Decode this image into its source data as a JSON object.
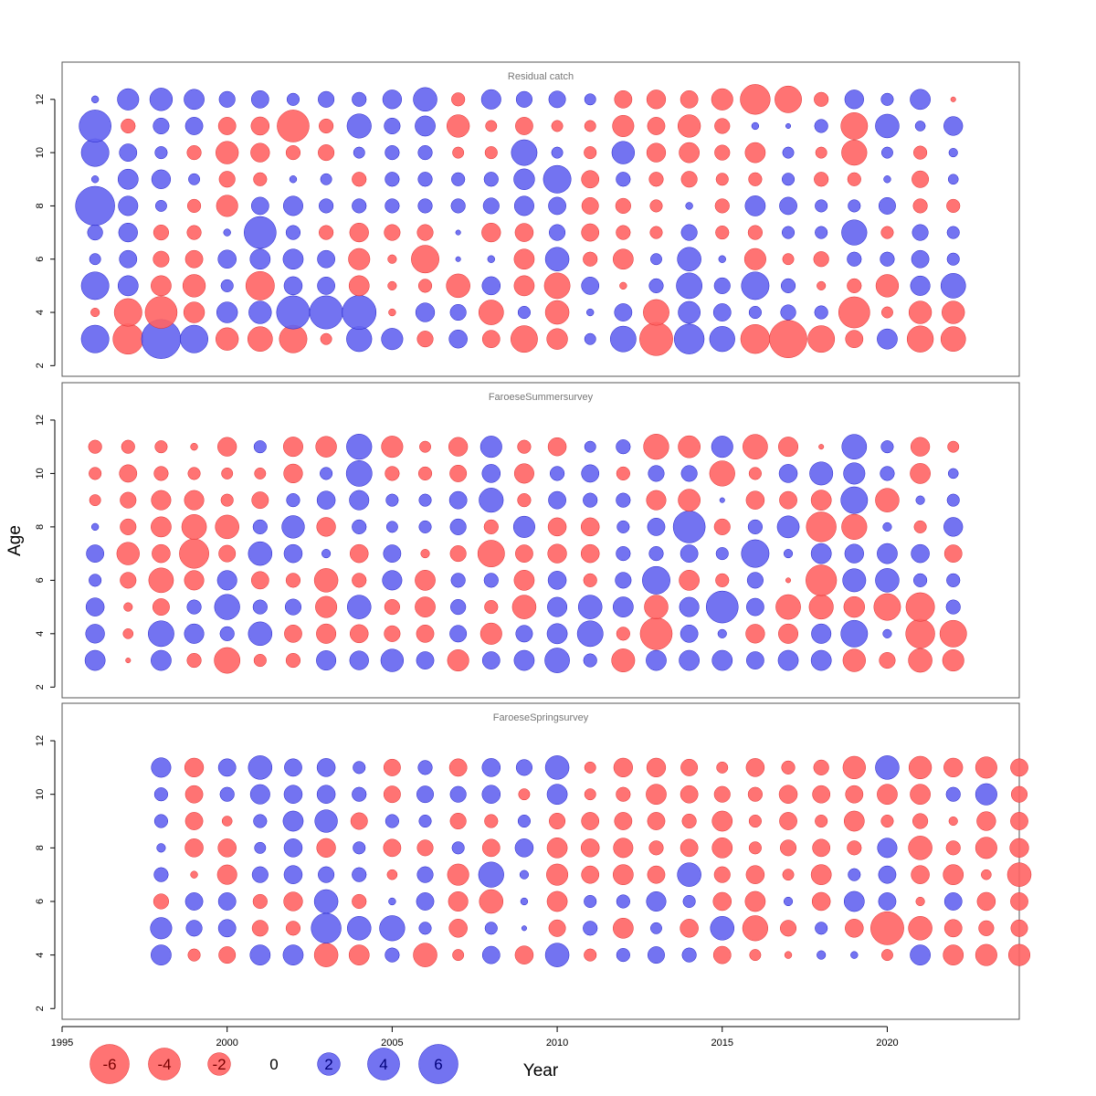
{
  "chart_data": {
    "type": "bubble",
    "xlabel": "Year",
    "ylabel": "Age",
    "years": [
      1996,
      1997,
      1998,
      1999,
      2000,
      2001,
      2002,
      2003,
      2004,
      2005,
      2006,
      2007,
      2008,
      2009,
      2010,
      2011,
      2012,
      2013,
      2014,
      2015,
      2016,
      2017,
      2018,
      2019,
      2020,
      2021,
      2022
    ],
    "xlim": [
      1995,
      2024
    ],
    "xticks": [
      "1995",
      "2000",
      "2005",
      "2010",
      "2015",
      "2020"
    ],
    "xtick_values": [
      1995,
      2000,
      2005,
      2010,
      2015,
      2020
    ],
    "ylim": [
      1.6,
      13.4
    ],
    "yticks": [
      "2",
      "4",
      "6",
      "8",
      "10",
      "12"
    ],
    "ytick_values": [
      2,
      4,
      6,
      8,
      10,
      12
    ],
    "max_residual": 6.3,
    "colors": {
      "negative": "#ff6464",
      "positive": "#6464f0",
      "negative_stroke": "#e03030",
      "positive_stroke": "#2020c8"
    },
    "panels": [
      {
        "title": "Residual catch",
        "ages": [
          3,
          4,
          5,
          6,
          7,
          8,
          9,
          10,
          11,
          12
        ],
        "start_year": 1996,
        "residuals": [
          [
            3.0,
            -0.3,
            3.0,
            0.5,
            0.9,
            6.0,
            0.2,
            3.0,
            4.0,
            0.2
          ],
          [
            -3.6,
            -3.0,
            1.6,
            1.2,
            1.4,
            1.5,
            1.6,
            1.2,
            -0.8,
            1.8
          ],
          [
            6.0,
            -4.0,
            -1.6,
            -1.0,
            -0.9,
            0.5,
            1.4,
            0.6,
            1.0,
            2.0
          ],
          [
            3.0,
            -1.7,
            -2.0,
            -1.2,
            -0.8,
            -0.7,
            0.5,
            -0.8,
            1.2,
            1.6
          ],
          [
            -2.0,
            1.7,
            0.6,
            1.3,
            0.2,
            -1.8,
            -1.0,
            -2.0,
            -1.2,
            1.0
          ],
          [
            -2.4,
            2.0,
            -3.2,
            1.6,
            4.0,
            1.2,
            -0.7,
            -1.4,
            -1.3,
            1.2
          ],
          [
            -3.0,
            4.3,
            1.3,
            1.6,
            0.8,
            1.5,
            0.2,
            -0.8,
            -4.0,
            0.6
          ],
          [
            -0.5,
            4.3,
            1.2,
            1.2,
            -0.8,
            0.8,
            0.5,
            -1.0,
            -0.8,
            1.0
          ],
          [
            2.5,
            4.5,
            -1.6,
            -1.8,
            -1.4,
            0.8,
            -0.8,
            0.5,
            2.3,
            0.8
          ],
          [
            1.8,
            -0.2,
            -0.3,
            -0.3,
            -1.0,
            0.8,
            0.8,
            0.8,
            1.0,
            1.4
          ],
          [
            -1.0,
            1.4,
            -0.7,
            -3.0,
            -1.0,
            0.8,
            0.8,
            0.8,
            1.6,
            2.2
          ],
          [
            1.3,
            1.0,
            -2.2,
            0.1,
            0.1,
            0.8,
            0.7,
            -0.5,
            -2.0,
            -0.7
          ],
          [
            -1.2,
            -2.4,
            1.3,
            0.2,
            -1.4,
            1.0,
            0.8,
            -0.6,
            -0.5,
            1.5
          ],
          [
            -2.8,
            0.6,
            -1.6,
            -1.6,
            -1.3,
            1.5,
            1.7,
            2.6,
            -1.2,
            1.0
          ],
          [
            -1.7,
            -2.2,
            -2.6,
            2.2,
            1.0,
            1.2,
            3.0,
            0.5,
            -0.5,
            1.1
          ],
          [
            0.5,
            0.2,
            1.2,
            -0.8,
            -1.2,
            -1.1,
            -1.2,
            -0.6,
            -0.5,
            0.5
          ],
          [
            2.6,
            1.2,
            -0.2,
            -1.6,
            -0.8,
            -0.9,
            0.8,
            2.0,
            -1.8,
            -1.2
          ],
          [
            -4.3,
            -2.6,
            0.8,
            0.5,
            -0.6,
            -0.6,
            -0.8,
            -1.4,
            -1.2,
            -1.4
          ],
          [
            3.5,
            1.9,
            2.6,
            2.2,
            1.0,
            0.2,
            -1.0,
            -1.6,
            -2.0,
            -1.2
          ],
          [
            2.5,
            1.2,
            1.0,
            0.2,
            -0.7,
            -0.8,
            -0.6,
            -0.9,
            -0.9,
            -1.8
          ],
          [
            -3.3,
            0.6,
            3.0,
            -1.8,
            -0.8,
            1.6,
            -0.7,
            -1.6,
            0.2,
            -3.5
          ],
          [
            -5.5,
            0.9,
            0.8,
            -0.5,
            0.6,
            1.2,
            0.6,
            0.5,
            0.1,
            -2.8
          ],
          [
            -2.8,
            0.7,
            -0.3,
            -0.9,
            0.6,
            0.6,
            -0.8,
            -0.5,
            0.7,
            -0.8
          ],
          [
            -1.2,
            -3.8,
            -0.8,
            0.8,
            2.5,
            0.6,
            -0.7,
            -2.5,
            -2.8,
            1.4
          ],
          [
            1.6,
            -0.5,
            -2.0,
            0.8,
            -0.6,
            1.1,
            0.2,
            0.5,
            2.2,
            0.6
          ],
          [
            -2.7,
            -2.0,
            1.5,
            1.2,
            1.0,
            -0.8,
            -1.1,
            -0.7,
            0.4,
            1.6
          ],
          [
            -2.4,
            -2.0,
            2.4,
            0.6,
            0.6,
            -0.7,
            0.4,
            0.3,
            1.4,
            -0.1
          ]
        ]
      },
      {
        "title": "FaroeseSummersurvey",
        "ages": [
          3,
          4,
          5,
          6,
          7,
          8,
          9,
          10,
          11
        ],
        "start_year": 1996,
        "residuals": [
          [
            1.6,
            1.4,
            1.3,
            0.6,
            1.2,
            0.2,
            -0.5,
            -0.6,
            -0.7
          ],
          [
            -0.1,
            -0.4,
            -0.3,
            -1.0,
            -2.0,
            -1.0,
            -1.0,
            -1.2,
            -0.7
          ],
          [
            1.6,
            2.6,
            -1.1,
            -2.4,
            -1.3,
            -1.6,
            -1.5,
            -0.8,
            -0.6
          ],
          [
            -0.8,
            1.5,
            0.8,
            -1.5,
            -3.4,
            -2.4,
            -1.5,
            -0.6,
            -0.2
          ],
          [
            -2.6,
            0.8,
            2.5,
            1.5,
            -1.1,
            -2.2,
            -0.6,
            -0.5,
            -1.4
          ],
          [
            -0.6,
            2.2,
            0.8,
            -1.2,
            2.2,
            0.8,
            -1.1,
            -0.5,
            0.6
          ],
          [
            -0.8,
            -1.2,
            1.0,
            -0.8,
            1.3,
            2.0,
            0.7,
            -1.4,
            -1.5
          ],
          [
            1.5,
            -1.5,
            -1.8,
            -2.2,
            0.3,
            -1.4,
            1.3,
            0.6,
            -1.7
          ],
          [
            1.4,
            -1.3,
            2.2,
            -0.8,
            -1.3,
            0.8,
            1.5,
            2.6,
            2.5
          ],
          [
            2.0,
            -1.0,
            -0.9,
            1.5,
            1.2,
            0.5,
            0.6,
            -0.8,
            -1.8
          ],
          [
            1.2,
            -1.2,
            -1.6,
            -1.6,
            -0.3,
            0.6,
            0.6,
            -0.7,
            -0.5
          ],
          [
            -1.8,
            1.1,
            0.9,
            0.8,
            -1.0,
            1.0,
            1.2,
            -1.1,
            -1.4
          ],
          [
            1.2,
            -1.8,
            -0.7,
            0.8,
            -2.8,
            -0.8,
            2.3,
            1.3,
            1.8
          ],
          [
            1.6,
            1.1,
            -2.2,
            -1.6,
            -1.2,
            1.8,
            -0.7,
            -1.5,
            -0.7
          ],
          [
            2.4,
            1.6,
            1.5,
            1.3,
            -1.4,
            -1.3,
            1.2,
            0.8,
            -1.3
          ],
          [
            0.7,
            2.6,
            2.2,
            -0.7,
            -1.3,
            -1.3,
            0.8,
            1.2,
            0.5
          ],
          [
            -2.1,
            -0.7,
            1.6,
            1.0,
            0.8,
            0.6,
            0.8,
            -0.7,
            0.8
          ],
          [
            1.6,
            -4.0,
            -2.2,
            3.0,
            0.8,
            1.2,
            -1.5,
            1.0,
            -2.5
          ],
          [
            1.6,
            1.2,
            1.5,
            -1.6,
            1.2,
            4.0,
            -1.9,
            1.0,
            -1.9
          ],
          [
            1.6,
            0.3,
            4.0,
            -0.7,
            0.6,
            -1.0,
            0.1,
            -2.5,
            1.8
          ],
          [
            1.2,
            -1.4,
            1.2,
            1.0,
            3.0,
            0.8,
            -1.3,
            -0.6,
            -2.4
          ],
          [
            1.6,
            -1.5,
            -2.4,
            -0.1,
            0.3,
            1.9,
            -1.2,
            1.3,
            -1.5
          ],
          [
            1.6,
            1.5,
            -2.3,
            -3.7,
            1.6,
            -3.5,
            -1.6,
            2.1,
            -0.1
          ],
          [
            -2.0,
            2.8,
            -1.7,
            2.1,
            1.4,
            -2.5,
            2.8,
            1.8,
            2.4
          ],
          [
            -1.0,
            0.3,
            -2.8,
            2.2,
            1.6,
            0.3,
            -2.2,
            0.8,
            0.6
          ],
          [
            -2.2,
            -3.3,
            -3.2,
            0.7,
            1.3,
            -0.6,
            0.3,
            -1.6,
            -1.4
          ],
          [
            -1.8,
            -2.8,
            0.8,
            0.7,
            -1.2,
            1.4,
            0.6,
            0.4,
            -0.5
          ]
        ]
      },
      {
        "title": "FaroeseSpringsurvey",
        "ages": [
          4,
          5,
          6,
          7,
          8,
          9,
          10,
          11
        ],
        "start_year": 1998,
        "residuals": [
          [
            1.6,
            1.8,
            -0.9,
            0.8,
            0.3,
            0.7,
            0.7,
            1.5
          ],
          [
            -0.6,
            1.0,
            1.2,
            -0.2,
            -1.3,
            -1.2,
            -1.2,
            -1.4
          ],
          [
            -1.1,
            1.2,
            1.2,
            -1.5,
            -1.3,
            -0.4,
            0.8,
            1.2
          ],
          [
            1.6,
            -1.0,
            -0.8,
            1.0,
            0.5,
            0.7,
            1.5,
            2.2
          ],
          [
            1.6,
            -0.8,
            -1.4,
            1.3,
            1.3,
            1.6,
            1.3,
            1.2
          ],
          [
            -2.2,
            3.5,
            2.2,
            1.0,
            -1.4,
            2.0,
            1.3,
            1.3
          ],
          [
            -1.6,
            2.2,
            -0.8,
            0.8,
            0.6,
            -1.1,
            0.8,
            0.6
          ],
          [
            0.8,
            2.5,
            0.2,
            -0.4,
            -1.2,
            0.7,
            -1.1,
            -1.1
          ],
          [
            -2.2,
            0.6,
            1.2,
            1.0,
            -1.0,
            0.6,
            1.1,
            0.8
          ],
          [
            -0.5,
            -1.3,
            -1.5,
            -1.8,
            0.6,
            -1.0,
            1.0,
            -1.2
          ],
          [
            1.2,
            0.6,
            -2.2,
            2.5,
            -1.2,
            -0.7,
            1.3,
            1.3
          ],
          [
            -1.3,
            0.1,
            0.2,
            0.3,
            1.3,
            0.6,
            -0.5,
            1.0
          ],
          [
            2.2,
            -1.1,
            -1.6,
            -1.8,
            -1.6,
            -1.0,
            1.6,
            2.2
          ],
          [
            -0.6,
            0.8,
            0.6,
            -1.2,
            -1.3,
            -1.2,
            -0.5,
            -0.5
          ],
          [
            0.7,
            -1.6,
            0.7,
            -1.6,
            -1.5,
            -1.2,
            -0.8,
            -1.4
          ],
          [
            1.1,
            0.5,
            1.5,
            -1.2,
            -0.8,
            -1.2,
            -1.6,
            -1.4
          ],
          [
            0.8,
            -1.3,
            0.6,
            2.2,
            -1.2,
            -0.8,
            -1.2,
            -1.1
          ],
          [
            -1.2,
            2.2,
            -1.3,
            -1.0,
            -1.6,
            -1.6,
            -1.0,
            -0.5
          ],
          [
            -0.5,
            -2.5,
            -1.6,
            -1.3,
            -0.6,
            -0.6,
            -0.8,
            -1.3
          ],
          [
            -0.2,
            -1.0,
            0.3,
            -0.5,
            -1.0,
            -1.2,
            -1.3,
            -0.7
          ],
          [
            0.3,
            0.6,
            -1.3,
            -1.6,
            -1.2,
            -0.6,
            -1.2,
            -0.9
          ],
          [
            0.2,
            -1.3,
            1.6,
            0.6,
            -0.8,
            -1.6,
            -1.2,
            -2.0
          ],
          [
            -0.5,
            -4.3,
            1.2,
            1.2,
            1.5,
            -0.6,
            -1.6,
            2.2
          ],
          [
            1.6,
            -2.2,
            -0.3,
            -1.3,
            -2.2,
            -0.9,
            -1.6,
            -2.0
          ],
          [
            -1.6,
            -1.2,
            1.2,
            -1.6,
            -0.8,
            -0.3,
            0.8,
            -1.4
          ],
          [
            -1.8,
            -0.9,
            -1.3,
            -0.4,
            -1.8,
            -1.4,
            1.8,
            -1.8
          ],
          [
            -1.8,
            -1.1,
            -1.2,
            -2.2,
            -1.4,
            -1.2,
            -1.0,
            -1.2
          ]
        ]
      }
    ],
    "legend": {
      "values": [
        -6,
        -4,
        -2,
        0,
        2,
        4,
        6
      ],
      "labels": [
        "-6",
        "-4",
        "-2",
        "0",
        "2",
        "4",
        "6"
      ]
    }
  }
}
